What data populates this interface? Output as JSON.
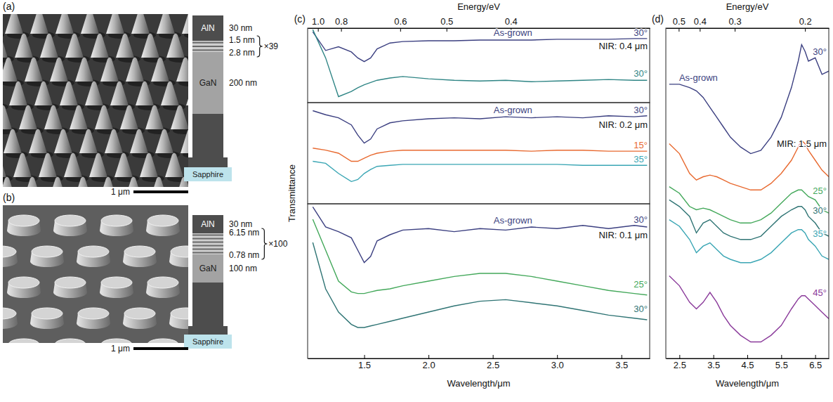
{
  "figure": {
    "y_label": "Transmittance"
  },
  "structures": [
    {
      "panel": "(a)",
      "cap": {
        "name": "AlN",
        "thickness": "30 nm"
      },
      "superlattice": {
        "layers": [
          "1.5 nm",
          "2.8 nm"
        ],
        "repeat": "×39"
      },
      "buffer": {
        "name": "GaN",
        "thickness": "200 nm"
      },
      "substrate": "Sapphire",
      "scale_bar": "1 μm"
    },
    {
      "panel": "(b)",
      "cap": {
        "name": "AlN",
        "thickness": "30 nm"
      },
      "superlattice": {
        "layers": [
          "6.15 nm",
          "0.78 nm"
        ],
        "repeat": "×100"
      },
      "buffer": {
        "name": "GaN",
        "thickness": "100 nm"
      },
      "substrate": "Sapphire",
      "scale_bar": "1 μm"
    }
  ],
  "chart_data": [
    {
      "type": "line",
      "panel": "(c)",
      "x2_label": "Energy/eV",
      "annotation": "NIR: 0.4 μm",
      "xlim": [
        1.06,
        3.72
      ],
      "ylim": [
        0,
        1
      ],
      "x2ticks": [
        {
          "value": 1.14,
          "label": "1.0"
        },
        {
          "value": 1.32,
          "label": "0.8"
        },
        {
          "value": 1.78,
          "label": "0.6"
        },
        {
          "value": 2.14,
          "label": "0.5"
        },
        {
          "value": 2.64,
          "label": "0.4"
        }
      ],
      "x": [
        1.1,
        1.2,
        1.3,
        1.4,
        1.45,
        1.5,
        1.55,
        1.6,
        1.7,
        1.8,
        2.0,
        2.2,
        2.4,
        2.6,
        2.8,
        3.0,
        3.2,
        3.4,
        3.6,
        3.7
      ],
      "series": [
        {
          "name": "30°",
          "sample": "As-grown",
          "color": "#3b3f80",
          "values": [
            0.95,
            0.7,
            0.75,
            0.68,
            0.6,
            0.55,
            0.6,
            0.72,
            0.8,
            0.82,
            0.83,
            0.83,
            0.84,
            0.84,
            0.84,
            0.85,
            0.85,
            0.85,
            0.86,
            0.86
          ]
        },
        {
          "name": "30°",
          "color": "#2f8585",
          "values": [
            0.98,
            0.6,
            0.08,
            0.15,
            0.2,
            0.24,
            0.27,
            0.3,
            0.33,
            0.35,
            0.32,
            0.3,
            0.29,
            0.3,
            0.28,
            0.29,
            0.3,
            0.31,
            0.3,
            0.3
          ]
        }
      ]
    },
    {
      "type": "line",
      "annotation": "NIR: 0.2 μm",
      "xlim": [
        1.06,
        3.72
      ],
      "ylim": [
        0,
        1
      ],
      "x": [
        1.1,
        1.2,
        1.3,
        1.4,
        1.45,
        1.5,
        1.55,
        1.6,
        1.7,
        1.8,
        2.0,
        2.2,
        2.4,
        2.6,
        2.8,
        3.0,
        3.2,
        3.4,
        3.6,
        3.7
      ],
      "series": [
        {
          "name": "30°",
          "sample": "As-grown",
          "color": "#3b3f80",
          "values": [
            0.92,
            0.88,
            0.85,
            0.78,
            0.68,
            0.6,
            0.64,
            0.74,
            0.8,
            0.82,
            0.84,
            0.85,
            0.84,
            0.86,
            0.85,
            0.86,
            0.85,
            0.87,
            0.86,
            0.87
          ]
        },
        {
          "name": "15°",
          "color": "#e8692f",
          "values": [
            0.55,
            0.53,
            0.5,
            0.42,
            0.42,
            0.45,
            0.48,
            0.5,
            0.52,
            0.53,
            0.53,
            0.53,
            0.53,
            0.53,
            0.52,
            0.53,
            0.53,
            0.52,
            0.52,
            0.52
          ]
        },
        {
          "name": "35°",
          "color": "#3aa6b4",
          "values": [
            0.42,
            0.4,
            0.3,
            0.22,
            0.24,
            0.3,
            0.34,
            0.37,
            0.38,
            0.39,
            0.39,
            0.39,
            0.39,
            0.39,
            0.39,
            0.39,
            0.38,
            0.38,
            0.38,
            0.38
          ]
        }
      ]
    },
    {
      "type": "line",
      "x_label": "Wavelength/μm",
      "annotation": "NIR: 0.1 μm",
      "xlim": [
        1.06,
        3.72
      ],
      "ylim": [
        0,
        1
      ],
      "xticks": [
        1.5,
        {
          "value": 2,
          "label": "2.0"
        },
        2.5,
        {
          "value": 3,
          "label": "3.0"
        },
        3.5
      ],
      "x": [
        1.1,
        1.2,
        1.3,
        1.4,
        1.45,
        1.5,
        1.55,
        1.6,
        1.7,
        1.8,
        2.0,
        2.2,
        2.4,
        2.6,
        2.8,
        3.0,
        3.2,
        3.4,
        3.6,
        3.7
      ],
      "series": [
        {
          "name": "30°",
          "sample": "As-grown",
          "color": "#3b3f80",
          "values": [
            0.98,
            0.85,
            0.82,
            0.78,
            0.7,
            0.62,
            0.66,
            0.76,
            0.8,
            0.83,
            0.84,
            0.82,
            0.84,
            0.83,
            0.85,
            0.84,
            0.86,
            0.84,
            0.86,
            0.85
          ]
        },
        {
          "name": "25°",
          "color": "#43a85a",
          "values": [
            0.9,
            0.7,
            0.5,
            0.43,
            0.42,
            0.42,
            0.43,
            0.44,
            0.45,
            0.47,
            0.5,
            0.53,
            0.55,
            0.55,
            0.53,
            0.5,
            0.47,
            0.44,
            0.42,
            0.41
          ]
        },
        {
          "name": "30°",
          "color": "#2f7474",
          "values": [
            0.75,
            0.45,
            0.3,
            0.22,
            0.2,
            0.2,
            0.21,
            0.22,
            0.24,
            0.26,
            0.3,
            0.34,
            0.37,
            0.38,
            0.36,
            0.34,
            0.31,
            0.28,
            0.26,
            0.25
          ]
        }
      ]
    },
    {
      "type": "line",
      "panel": "(d)",
      "x2_label": "Energy/eV",
      "x_label": "Wavelength/μm",
      "annotation": "MIR: 1.5 μm",
      "xlim": [
        2.1,
        6.9
      ],
      "ylim": [
        0,
        1
      ],
      "x2ticks": [
        {
          "value": 2.48,
          "label": "0.5"
        },
        {
          "value": 3.1,
          "label": "0.4"
        },
        {
          "value": 4.13,
          "label": "0.3"
        },
        {
          "value": 6.2,
          "label": "0.2"
        }
      ],
      "xticks": [
        2.5,
        3.5,
        4.5,
        5.5,
        6.5
      ],
      "x": [
        2.2,
        2.5,
        2.8,
        3.0,
        3.2,
        3.4,
        3.6,
        3.8,
        4.0,
        4.3,
        4.6,
        4.9,
        5.2,
        5.5,
        5.8,
        6.0,
        6.1,
        6.2,
        6.3,
        6.5,
        6.7,
        6.9
      ],
      "series": [
        {
          "name": "30°",
          "sample": "As-grown",
          "color": "#3b3f80",
          "values": [
            0.83,
            0.83,
            0.82,
            0.81,
            0.79,
            0.76,
            0.73,
            0.7,
            0.67,
            0.64,
            0.62,
            0.63,
            0.67,
            0.73,
            0.82,
            0.9,
            0.95,
            0.93,
            0.9,
            0.91,
            0.86,
            0.87
          ]
        },
        {
          "name": "15°",
          "color": "#e8692f",
          "values": [
            0.65,
            0.62,
            0.56,
            0.54,
            0.55,
            0.555,
            0.55,
            0.54,
            0.53,
            0.52,
            0.51,
            0.51,
            0.53,
            0.56,
            0.6,
            0.64,
            0.66,
            0.65,
            0.63,
            0.6,
            0.57,
            0.55
          ]
        },
        {
          "name": "25°",
          "color": "#43a85a",
          "values": [
            0.52,
            0.5,
            0.46,
            0.45,
            0.455,
            0.45,
            0.44,
            0.43,
            0.42,
            0.41,
            0.41,
            0.42,
            0.44,
            0.47,
            0.5,
            0.51,
            0.51,
            0.5,
            0.49,
            0.48,
            0.45,
            0.44
          ]
        },
        {
          "name": "30°",
          "color": "#2f7474",
          "values": [
            0.48,
            0.46,
            0.43,
            0.38,
            0.41,
            0.42,
            0.4,
            0.38,
            0.37,
            0.36,
            0.36,
            0.37,
            0.4,
            0.43,
            0.45,
            0.46,
            0.46,
            0.45,
            0.43,
            0.41,
            0.38,
            0.37
          ]
        },
        {
          "name": "35°",
          "color": "#3aa6b4",
          "values": [
            0.42,
            0.4,
            0.36,
            0.32,
            0.34,
            0.35,
            0.33,
            0.31,
            0.3,
            0.29,
            0.29,
            0.3,
            0.32,
            0.35,
            0.38,
            0.39,
            0.39,
            0.38,
            0.36,
            0.34,
            0.31,
            0.3
          ]
        },
        {
          "name": "45°",
          "color": "#8a3a9a",
          "values": [
            0.25,
            0.22,
            0.17,
            0.15,
            0.17,
            0.2,
            0.17,
            0.13,
            0.1,
            0.07,
            0.05,
            0.05,
            0.07,
            0.1,
            0.15,
            0.18,
            0.19,
            0.19,
            0.18,
            0.16,
            0.14,
            0.12
          ]
        }
      ]
    }
  ]
}
